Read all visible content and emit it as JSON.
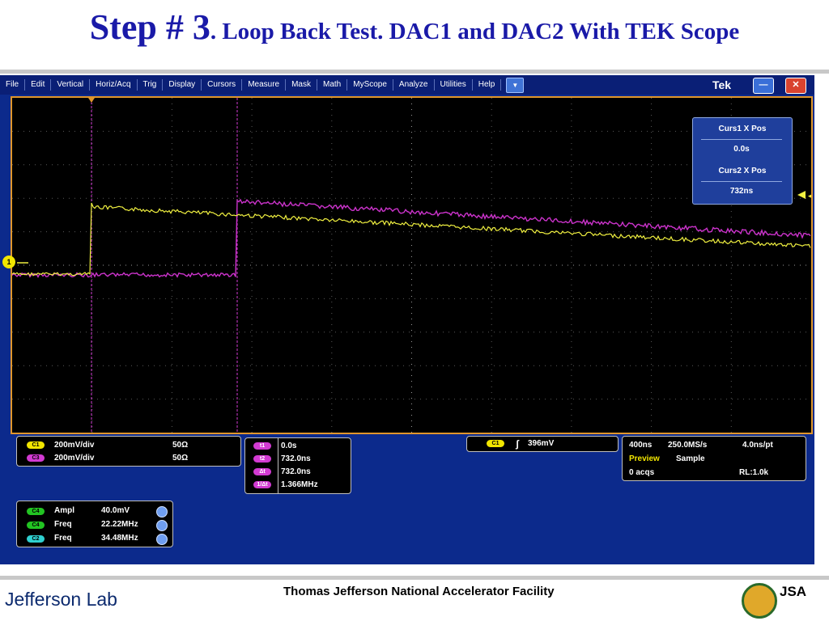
{
  "slide": {
    "title_main": "Step # 3",
    "title_rest": ". Loop Back Test.  DAC1 and DAC2 With TEK Scope",
    "footer_center": "Thomas Jefferson National Accelerator Facility",
    "footer_logo_left": "Jefferson Lab",
    "footer_logo_right": "JSA"
  },
  "scope": {
    "menu": [
      "File",
      "Edit",
      "Vertical",
      "Horiz/Acq",
      "Trig",
      "Display",
      "Cursors",
      "Measure",
      "Mask",
      "Math",
      "MyScope",
      "Analyze",
      "Utilities",
      "Help"
    ],
    "brand": "Tek",
    "window_min": "—",
    "window_close": "✕",
    "menu_dropdown_icon": "▼",
    "cursor_panel": {
      "curs1_label": "Curs1 X Pos",
      "curs1_value": "0.0s",
      "curs2_label": "Curs2 X Pos",
      "curs2_value": "732ns"
    },
    "channels": [
      {
        "tag": "C1",
        "scale": "200mV/div",
        "impedance": "50Ω",
        "color": "#f2e600"
      },
      {
        "tag": "C3",
        "scale": "200mV/div",
        "impedance": "50Ω",
        "color": "#d23ad2"
      }
    ],
    "cursor_readout": [
      {
        "tag": "t1",
        "value": "0.0s"
      },
      {
        "tag": "t2",
        "value": "732.0ns"
      },
      {
        "tag": "Δt",
        "value": "732.0ns"
      },
      {
        "tag": "1/Δt",
        "value": "1.366MHz"
      }
    ],
    "trigger": {
      "tag": "C1",
      "symbol": "ʃ",
      "level": "396mV"
    },
    "horizontal": {
      "timebase": "400ns",
      "sample_rate": "250.0MS/s",
      "resolution": "4.0ns/pt",
      "mode_label": "Preview",
      "mode": "Sample",
      "acqs": "0 acqs",
      "record_length": "RL:1.0k"
    },
    "measurements": [
      {
        "tag": "C4",
        "name": "Ampl",
        "value": "40.0mV",
        "color": "#22c422"
      },
      {
        "tag": "C4",
        "name": "Freq",
        "value": "22.22MHz",
        "color": "#22c422"
      },
      {
        "tag": "C2",
        "name": "Freq",
        "value": "34.48MHz",
        "color": "#2fd0d0"
      }
    ],
    "channel1_marker": "1",
    "colors": {
      "ch1_trace": "#f0f040",
      "ch3_trace": "#cc33cc",
      "grid": "#5a5a5a",
      "display_border": "#e0962c",
      "menubar": "#0a1f76",
      "panel": "#0c2a8c"
    }
  }
}
